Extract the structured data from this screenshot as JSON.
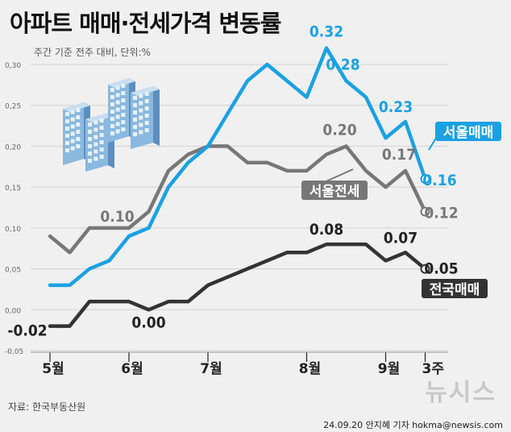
{
  "title": "아파트 매매·전세가격 변동률",
  "subtitle": "주간 기준 전주 대비, 단위:%",
  "source": "자료: 한국부동산원",
  "credit": "24.09.20 안지혜 기자  hokma@newsis.com",
  "logo_text": "뉴시스",
  "colors": {
    "seoul_sale": "#1ba1e2",
    "seoul_jeonse": "#777777",
    "national_sale": "#333333",
    "background": "#f0f0f0"
  },
  "chart_data": {
    "type": "line",
    "title": "아파트 매매·전세가격 변동률",
    "subtitle": "주간 기준 전주 대비, 단위:%",
    "ylim": [
      -0.05,
      0.3
    ],
    "y_ticks": [
      "-0,05",
      "0,00",
      "0,05",
      "0,10",
      "0,15",
      "0,20",
      "0,25",
      "0,30"
    ],
    "y_tick_values": [
      -0.05,
      0.0,
      0.05,
      0.1,
      0.15,
      0.2,
      0.25,
      0.3
    ],
    "grid": true,
    "x_labels": [
      {
        "label": "5월",
        "index": 0
      },
      {
        "label": "6월",
        "index": 4
      },
      {
        "label": "7월",
        "index": 8
      },
      {
        "label": "8월",
        "index": 13
      },
      {
        "label": "9월",
        "index": 17
      },
      {
        "label": "3주",
        "index": 19
      }
    ],
    "series": [
      {
        "name": "서울매매",
        "values": [
          0.03,
          0.03,
          0.05,
          0.06,
          0.09,
          0.1,
          0.15,
          0.18,
          0.2,
          0.24,
          0.28,
          0.3,
          0.28,
          0.26,
          0.32,
          0.28,
          0.26,
          0.21,
          0.23,
          0.16
        ],
        "labels": [
          {
            "index": 14,
            "text": "0.32"
          },
          {
            "index": 15,
            "text": "0.28"
          },
          {
            "index": 18,
            "text": "0.23"
          },
          {
            "index": 19,
            "text": "0.16"
          }
        ]
      },
      {
        "name": "서울전세",
        "values": [
          0.09,
          0.07,
          0.1,
          0.1,
          0.1,
          0.12,
          0.17,
          0.19,
          0.2,
          0.2,
          0.18,
          0.18,
          0.17,
          0.17,
          0.19,
          0.2,
          0.17,
          0.15,
          0.17,
          0.12
        ],
        "labels": [
          {
            "index": 3,
            "text": "0.10"
          },
          {
            "index": 15,
            "text": "0.20"
          },
          {
            "index": 18,
            "text": "0.17"
          },
          {
            "index": 19,
            "text": "0.12"
          }
        ]
      },
      {
        "name": "전국매매",
        "values": [
          -0.02,
          -0.02,
          0.01,
          0.01,
          0.01,
          0.0,
          0.01,
          0.01,
          0.03,
          0.04,
          0.05,
          0.06,
          0.07,
          0.07,
          0.08,
          0.08,
          0.08,
          0.06,
          0.07,
          0.05
        ],
        "labels": [
          {
            "index": 0,
            "text": "-0.02"
          },
          {
            "index": 5,
            "text": "0.00"
          },
          {
            "index": 14,
            "text": "0.08"
          },
          {
            "index": 18,
            "text": "0.07"
          },
          {
            "index": 19,
            "text": "0.05"
          }
        ]
      }
    ]
  }
}
